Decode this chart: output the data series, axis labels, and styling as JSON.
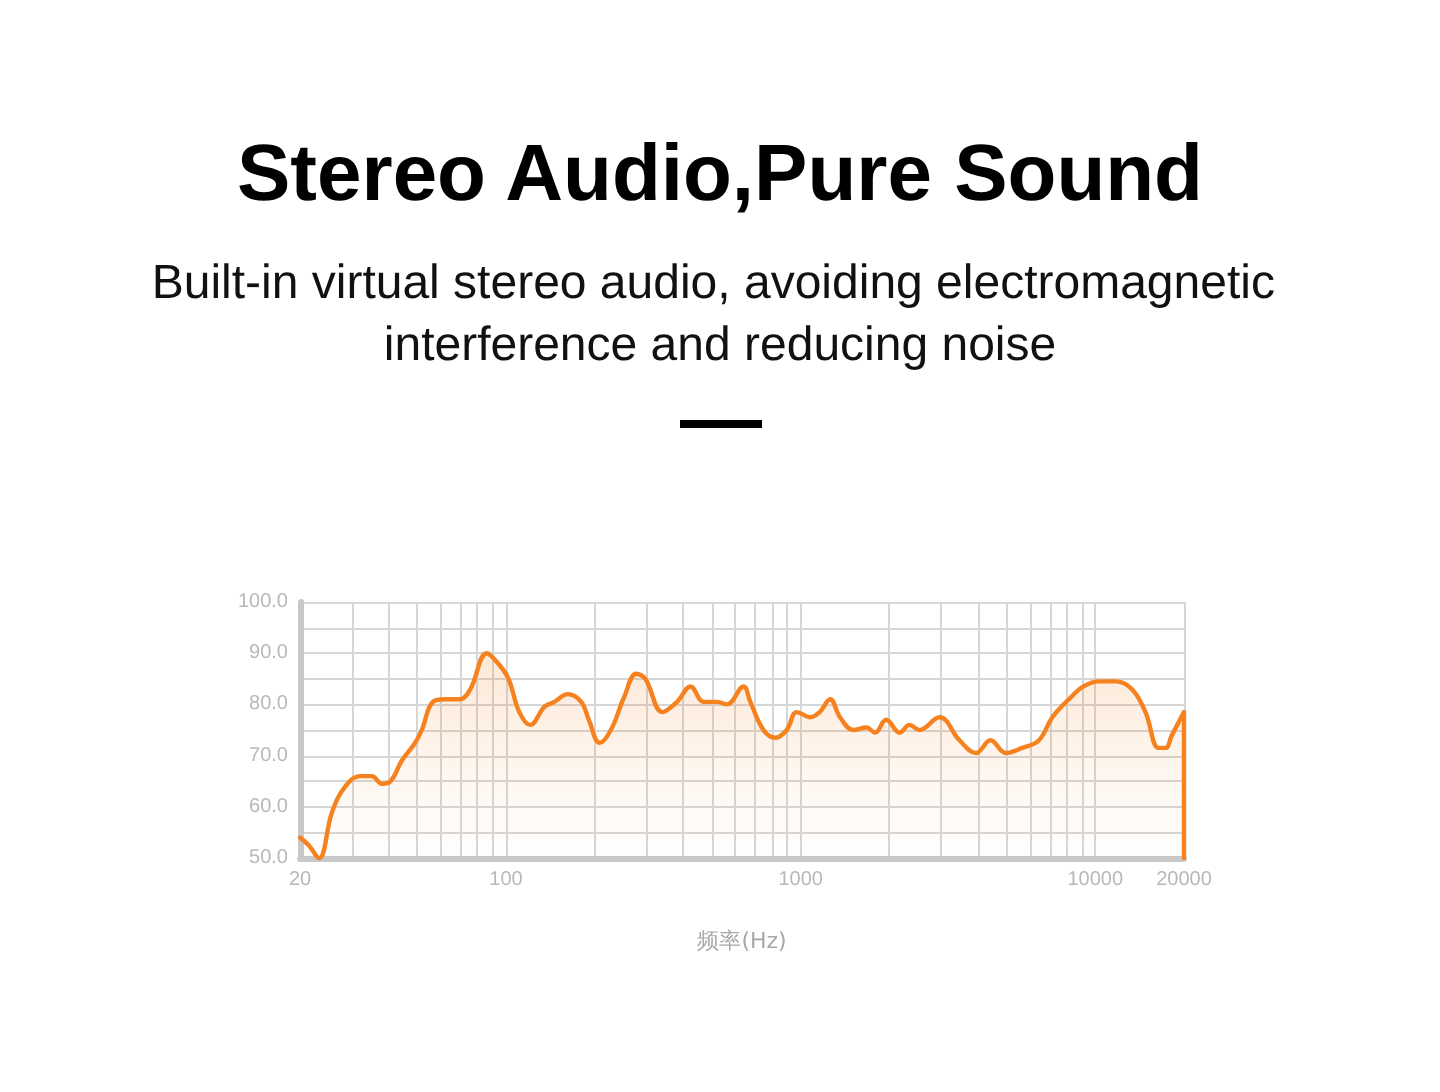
{
  "chart_data": {
    "type": "area",
    "title": "Stereo Audio,Pure Sound",
    "subtitle": "Built-in virtual stereo audio, avoiding electromagnetic interference and reducing noise",
    "xlabel": "频率(Hz)",
    "x": [
      20,
      21.4,
      23.2,
      25.7,
      28.5,
      32,
      35.1,
      37.9,
      40.6,
      44.3,
      49.2,
      51.8,
      56.5,
      62.1,
      69.7,
      75.7,
      86.1,
      94,
      102,
      111,
      121,
      135,
      146,
      162,
      180,
      191,
      208,
      227,
      252,
      277,
      297,
      340,
      381,
      423,
      469,
      521,
      562,
      640,
      675,
      748,
      821,
      897,
      970,
      1080,
      1160,
      1260,
      1360,
      1510,
      1670,
      1790,
      1950,
      2170,
      2340,
      2530,
      2960,
      3460,
      3940,
      4410,
      4970,
      5650,
      6440,
      7150,
      8140,
      9120,
      10300,
      11700,
      13300,
      14800,
      16400,
      17300,
      18200,
      20000,
      20000
    ],
    "series": [
      {
        "color": "#f5821f",
        "values": [
          54,
          52.5,
          50,
          59,
          64,
          66,
          66,
          64.5,
          65,
          69,
          72.5,
          75,
          80.5,
          81,
          81,
          83,
          90,
          88,
          85,
          78.5,
          76,
          79.5,
          80.5,
          82,
          80.5,
          77,
          72.5,
          75,
          81.5,
          86,
          85,
          78.5,
          80.5,
          83.5,
          80.5,
          80.5,
          80,
          83.5,
          80.5,
          75,
          73.5,
          75,
          78.5,
          77.5,
          78.5,
          81,
          77.5,
          75,
          75.5,
          74.5,
          77,
          74.5,
          76,
          75,
          77.5,
          73,
          70.5,
          73,
          70.5,
          71.5,
          73,
          77.5,
          81,
          83.5,
          84.5,
          84.5,
          83,
          78.5,
          71.5,
          71.5,
          74,
          78.5,
          50
        ]
      }
    ],
    "xlim": [
      20,
      20000
    ],
    "ylim": [
      50,
      100
    ],
    "log": "x",
    "grid": true,
    "marker": "none",
    "line_style": "solid",
    "xticks": [
      20,
      {
        "value": 30,
        "label": null
      },
      {
        "value": 40,
        "label": null
      },
      {
        "value": 50,
        "label": null
      },
      {
        "value": 60,
        "label": null
      },
      {
        "value": 70,
        "label": null
      },
      {
        "value": 80,
        "label": null
      },
      {
        "value": 90,
        "label": null
      },
      100,
      {
        "value": 200,
        "label": null
      },
      {
        "value": 300,
        "label": null
      },
      {
        "value": 400,
        "label": null
      },
      {
        "value": 500,
        "label": null
      },
      {
        "value": 600,
        "label": null
      },
      {
        "value": 700,
        "label": null
      },
      {
        "value": 800,
        "label": null
      },
      {
        "value": 900,
        "label": null
      },
      1000,
      {
        "value": 2000,
        "label": null
      },
      {
        "value": 3000,
        "label": null
      },
      {
        "value": 4000,
        "label": null
      },
      {
        "value": 5000,
        "label": null
      },
      {
        "value": 6000,
        "label": null
      },
      {
        "value": 7000,
        "label": null
      },
      {
        "value": 8000,
        "label": null
      },
      {
        "value": 9000,
        "label": null
      },
      10000,
      20000
    ],
    "yticks": [
      {
        "value": 50,
        "label": "50.0"
      },
      {
        "value": 55,
        "label": null
      },
      {
        "value": 60,
        "label": "60.0"
      },
      {
        "value": 65,
        "label": null
      },
      {
        "value": 70,
        "label": "70.0"
      },
      {
        "value": 75,
        "label": null
      },
      {
        "value": 80,
        "label": "80.0"
      },
      {
        "value": 85,
        "label": null
      },
      {
        "value": 90,
        "label": "90.0"
      },
      {
        "value": 95,
        "label": null
      },
      {
        "value": 100,
        "label": "100.0"
      }
    ]
  }
}
